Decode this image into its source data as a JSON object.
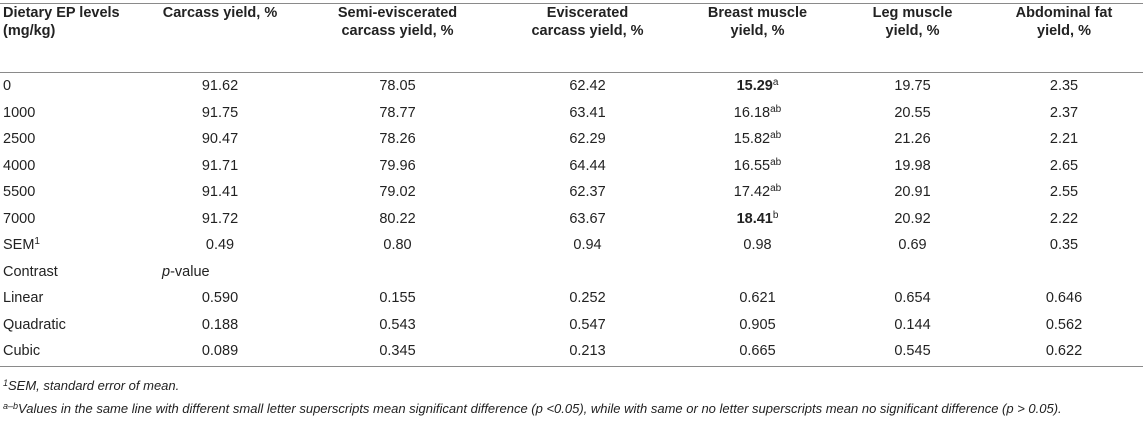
{
  "table": {
    "headers": [
      [
        "Dietary EP levels",
        "(mg/kg)"
      ],
      [
        "Carcass yield, %"
      ],
      [
        "Semi-eviscerated",
        "carcass yield, %"
      ],
      [
        "Eviscerated",
        "carcass yield, %"
      ],
      [
        "Breast muscle",
        "yield, %"
      ],
      [
        "Leg muscle",
        "yield, %"
      ],
      [
        "Abdominal fat",
        "yield, %"
      ]
    ],
    "rows": [
      {
        "level": "0",
        "carcass": "91.62",
        "semi": "78.05",
        "evisc": "62.42",
        "breast": "15.29",
        "breast_sup": "a",
        "leg": "19.75",
        "fat": "2.35"
      },
      {
        "level": "1000",
        "carcass": "91.75",
        "semi": "78.77",
        "evisc": "63.41",
        "breast": "16.18",
        "breast_sup": "ab",
        "leg": "20.55",
        "fat": "2.37"
      },
      {
        "level": "2500",
        "carcass": "90.47",
        "semi": "78.26",
        "evisc": "62.29",
        "breast": "15.82",
        "breast_sup": "ab",
        "leg": "21.26",
        "fat": "2.21"
      },
      {
        "level": "4000",
        "carcass": "91.71",
        "semi": "79.96",
        "evisc": "64.44",
        "breast": "16.55",
        "breast_sup": "ab",
        "leg": "19.98",
        "fat": "2.65"
      },
      {
        "level": "5500",
        "carcass": "91.41",
        "semi": "79.02",
        "evisc": "62.37",
        "breast": "17.42",
        "breast_sup": "ab",
        "leg": "20.91",
        "fat": "2.55"
      },
      {
        "level": "7000",
        "carcass": "91.72",
        "semi": "80.22",
        "evisc": "63.67",
        "breast": "18.41",
        "breast_sup": "b",
        "leg": "20.92",
        "fat": "2.22"
      }
    ],
    "sem": {
      "label": "SEM",
      "label_sup": "1",
      "carcass": "0.49",
      "semi": "0.80",
      "evisc": "0.94",
      "breast": "0.98",
      "leg": "0.69",
      "fat": "0.35"
    },
    "contrast": {
      "label": "Contrast",
      "p_letter": "p",
      "p_rest": "-value"
    },
    "contrasts": [
      {
        "label": "Linear",
        "carcass": "0.590",
        "semi": "0.155",
        "evisc": "0.252",
        "breast": "0.621",
        "leg": "0.654",
        "fat": "0.646"
      },
      {
        "label": "Quadratic",
        "carcass": "0.188",
        "semi": "0.543",
        "evisc": "0.547",
        "breast": "0.905",
        "leg": "0.144",
        "fat": "0.562"
      },
      {
        "label": "Cubic",
        "carcass": "0.089",
        "semi": "0.345",
        "evisc": "0.213",
        "breast": "0.665",
        "leg": "0.545",
        "fat": "0.622"
      }
    ]
  },
  "footnotes": {
    "note1_sup": "1",
    "note1_text": "SEM, standard error of mean.",
    "note2_sup": "a–b",
    "note2_text": "Values in the same line with different small letter superscripts mean significant difference (p <0.05), while with same or no letter superscripts mean no significant difference (p > 0.05)."
  }
}
